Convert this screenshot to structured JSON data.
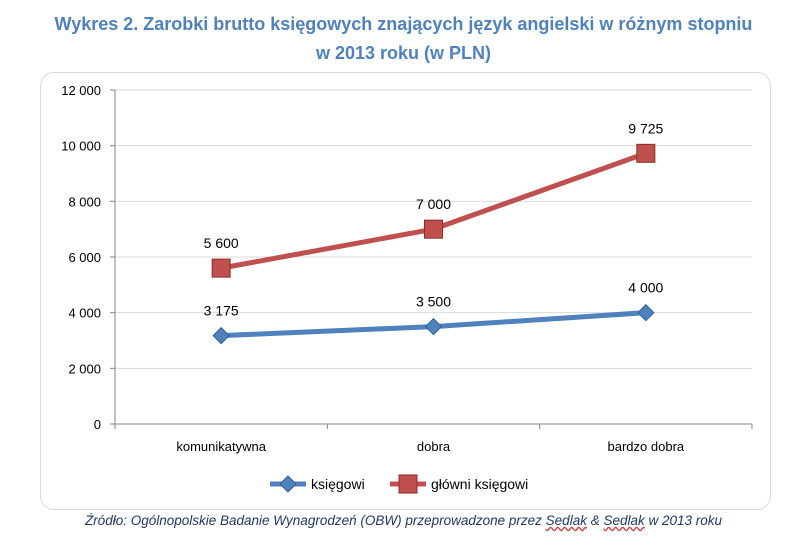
{
  "title_line1": "Wykres 2. Zarobki brutto księgowych znających język angielski w różnym stopniu",
  "title_line2": "w 2013 roku (w PLN)",
  "source": {
    "prefix": "Źródło: Ogólnopolskie Badanie Wynagrodzeń (OBW) przeprowadzone przez ",
    "u1": "Sedlak",
    "mid": " & ",
    "u2": "Sedlak",
    "suffix": " w 2013 roku"
  },
  "chart_data": {
    "type": "line",
    "title": "Wykres 2. Zarobki brutto księgowych znających język angielski w różnym stopniu w 2013 roku (w PLN)",
    "categories": [
      "komunikatywna",
      "dobra",
      "bardzo dobra"
    ],
    "series": [
      {
        "name": "księgowi",
        "values": [
          3175,
          3500,
          4000
        ],
        "labels": [
          "3 175",
          "3 500",
          "4 000"
        ],
        "color": "#4f81bd",
        "marker": "diamond"
      },
      {
        "name": "główni księgowi",
        "values": [
          5600,
          7000,
          9725
        ],
        "labels": [
          "5 600",
          "7 000",
          "9 725"
        ],
        "color": "#c0504d",
        "marker": "square"
      }
    ],
    "ylim": [
      0,
      12000
    ],
    "yticks": [
      0,
      2000,
      4000,
      6000,
      8000,
      10000,
      12000
    ],
    "ytick_labels": [
      "0",
      "2 000",
      "4 000",
      "6 000",
      "8 000",
      "10 000",
      "12 000"
    ],
    "xlabel": "",
    "ylabel": "",
    "grid": true,
    "legend": "bottom"
  }
}
